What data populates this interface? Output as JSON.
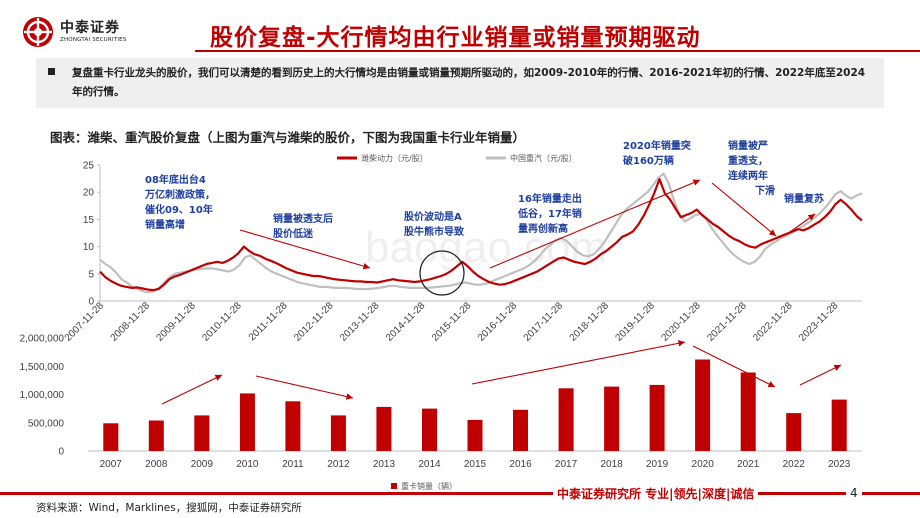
{
  "brand": {
    "name_cn": "中泰证券",
    "name_en": "ZHONGTAI SECURITIES",
    "accent": "#c00000"
  },
  "title": "股价复盘-大行情均由行业销量或销量预期驱动",
  "summary": "复盘重卡行业龙头的股价，我们可以清楚的看到历史上的大行情均是由销量或销量预期所驱动的，如2009-2010年的行情、2016-2021年初的行情、2022年底至2024年的行情。",
  "figure_caption": "图表：潍柴、重汽股价复盘（上图为重汽与潍柴的股价，下图为我国重卡行业年销量）",
  "annotations": [
    "08年底出台4",
    "万亿刺激政策，",
    "催化09、10年",
    "销量高增",
    "销量被透支后",
    "股价低迷",
    "股价波动是A",
    "股牛熊市导致",
    "16年销量走出",
    "低谷，17年销",
    "量再创新高",
    "2020年销量突",
    "破160万辆",
    "销量被严",
    "重透支，",
    "连续两年",
    "下滑",
    "销量复苏"
  ],
  "watermark": "baogao.com",
  "chart_data": [
    {
      "type": "line",
      "title": "",
      "series": [
        {
          "name": "潍柴动力（元/股）",
          "color": "#c00000",
          "values": [
            5.4,
            4.4,
            3.7,
            3.2,
            2.8,
            2.6,
            2.4,
            2.5,
            2.3,
            2.1,
            2.0,
            2.2,
            3.0,
            4.0,
            4.5,
            4.8,
            5.2,
            5.6,
            6.0,
            6.4,
            6.8,
            7.0,
            7.2,
            7.0,
            7.4,
            8.0,
            8.8,
            10.0,
            9.2,
            8.6,
            8.3,
            7.8,
            7.4,
            7.0,
            6.5,
            6.0,
            5.6,
            5.2,
            5.0,
            4.8,
            4.6,
            4.6,
            4.4,
            4.2,
            4.0,
            3.9,
            3.8,
            3.7,
            3.6,
            3.6,
            3.5,
            3.5,
            3.4,
            3.6,
            3.8,
            4.0,
            3.8,
            3.7,
            3.6,
            3.5,
            3.6,
            3.8,
            4.0,
            4.3,
            4.6,
            5.0,
            5.6,
            6.4,
            7.2,
            6.4,
            5.4,
            4.6,
            4.0,
            3.5,
            3.2,
            3.0,
            3.1,
            3.4,
            3.8,
            4.2,
            4.6,
            5.0,
            5.4,
            6.0,
            6.6,
            7.2,
            7.8,
            8.0,
            7.6,
            7.2,
            7.0,
            6.8,
            7.2,
            7.8,
            8.6,
            9.2,
            10.0,
            10.8,
            11.8,
            12.2,
            12.8,
            14.0,
            15.6,
            17.6,
            19.8,
            22.4,
            19.8,
            18.6,
            17.0,
            15.4,
            15.8,
            16.2,
            16.8,
            15.8,
            15.0,
            14.2,
            13.6,
            12.8,
            12.0,
            11.4,
            11.0,
            10.4,
            10.0,
            9.8,
            10.4,
            10.8,
            11.2,
            11.6,
            12.0,
            12.4,
            12.8,
            13.2,
            13.0,
            13.4,
            14.0,
            14.6,
            15.4,
            16.4,
            17.8,
            18.6,
            17.8,
            16.8,
            15.6,
            14.8
          ]
        },
        {
          "name": "中国重汽（元/股）",
          "color": "#bfbfbf",
          "values": [
            7.6,
            6.8,
            6.2,
            5.2,
            4.0,
            3.4,
            2.6,
            2.2,
            1.8,
            1.6,
            1.8,
            2.4,
            3.4,
            4.4,
            5.0,
            5.2,
            5.4,
            5.6,
            5.8,
            5.9,
            6.0,
            6.0,
            5.8,
            5.6,
            5.4,
            5.8,
            6.6,
            8.0,
            8.4,
            7.6,
            6.8,
            6.0,
            5.4,
            5.0,
            4.6,
            4.2,
            3.8,
            3.4,
            3.2,
            3.0,
            2.8,
            2.6,
            2.6,
            2.5,
            2.4,
            2.4,
            2.4,
            2.3,
            2.2,
            2.2,
            2.2,
            2.3,
            2.4,
            2.6,
            2.8,
            2.8,
            2.6,
            2.5,
            2.4,
            2.4,
            2.4,
            2.4,
            2.5,
            2.6,
            2.7,
            2.8,
            3.0,
            3.2,
            3.4,
            3.2,
            3.0,
            3.0,
            3.2,
            3.6,
            4.0,
            4.4,
            4.8,
            5.2,
            5.6,
            6.0,
            6.6,
            7.4,
            8.4,
            9.6,
            10.4,
            11.2,
            11.6,
            11.0,
            10.0,
            9.0,
            8.4,
            8.2,
            8.6,
            9.6,
            10.8,
            12.4,
            14.0,
            15.6,
            16.8,
            17.6,
            18.4,
            19.2,
            20.0,
            21.2,
            22.6,
            23.4,
            21.6,
            18.4,
            16.0,
            14.6,
            15.2,
            15.8,
            16.0,
            15.0,
            13.4,
            12.0,
            10.8,
            9.6,
            8.6,
            7.8,
            7.2,
            6.8,
            7.2,
            8.2,
            9.6,
            10.4,
            11.0,
            11.6,
            12.0,
            12.6,
            13.2,
            13.8,
            14.4,
            15.2,
            16.0,
            17.0,
            18.2,
            19.6,
            20.2,
            19.4,
            18.8,
            19.4,
            19.8
          ]
        }
      ],
      "x_tick_labels": [
        "2007-11-28",
        "2008-11-28",
        "2009-11-28",
        "2010-11-28",
        "2011-11-28",
        "2012-11-28",
        "2013-11-28",
        "2014-11-28",
        "2015-11-28",
        "2016-11-28",
        "2017-11-28",
        "2018-11-28",
        "2019-11-28",
        "2020-11-28",
        "2021-11-28",
        "2022-11-28",
        "2023-11-28"
      ],
      "ylim": [
        0,
        25
      ],
      "y_ticks": [
        "0",
        "5",
        "10",
        "15",
        "20",
        "25"
      ],
      "grid": false,
      "legend": "top-center"
    },
    {
      "type": "bar",
      "title": "",
      "categories": [
        "2007",
        "2008",
        "2009",
        "2010",
        "2011",
        "2012",
        "2013",
        "2014",
        "2015",
        "2016",
        "2017",
        "2018",
        "2019",
        "2020",
        "2021",
        "2022",
        "2023"
      ],
      "series": [
        {
          "name": "重卡销量（辆）",
          "color": "#c00000",
          "values": [
            490000,
            540000,
            630000,
            1020000,
            880000,
            630000,
            780000,
            750000,
            550000,
            730000,
            1110000,
            1140000,
            1170000,
            1620000,
            1390000,
            670000,
            910000
          ]
        }
      ],
      "ylim": [
        0,
        2000000
      ],
      "y_ticks": [
        "0",
        "500,000",
        "1,000,000",
        "1,500,000",
        "2,000,000"
      ],
      "grid": false,
      "legend": "bottom-center"
    }
  ],
  "footer": {
    "source": "资料来源：Wind，Marklines，搜狐网，中泰证券研究所",
    "brand": "中泰证券研究所  专业|领先|深度|诚信",
    "page": "4"
  }
}
